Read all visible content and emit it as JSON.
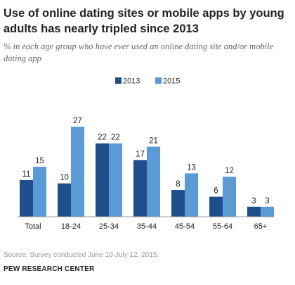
{
  "title": "Use of online dating sites or mobile apps by young adults has nearly tripled since 2013",
  "subtitle": "% in each age group who have ever used an online dating site and/or mobile dating app",
  "source": "Source: Survey conducted June 10-July 12, 2015.",
  "organization": "PEW RESEARCH CENTER",
  "colors": {
    "s2013": "#1f4e8c",
    "s2015": "#5b9bd5",
    "axis": "#999999"
  },
  "chart_data": {
    "type": "bar",
    "categories": [
      "Total",
      "18-24",
      "25-34",
      "35-44",
      "45-54",
      "55-64",
      "65+"
    ],
    "series": [
      {
        "name": "2013",
        "values": [
          11,
          10,
          22,
          17,
          8,
          6,
          3
        ]
      },
      {
        "name": "2015",
        "values": [
          15,
          27,
          22,
          21,
          13,
          12,
          3
        ]
      }
    ],
    "ylim": [
      0,
      27
    ],
    "legend_position": "top-center",
    "grid": false
  }
}
